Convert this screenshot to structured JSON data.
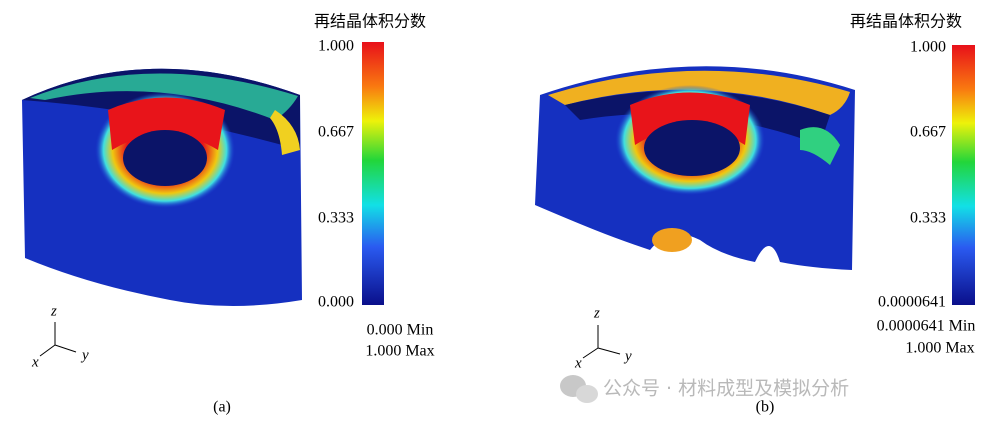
{
  "panels": [
    {
      "colorbar": {
        "title": "再结晶体积分数",
        "ticks": [
          "1.000",
          "0.667",
          "0.333",
          "0.000"
        ],
        "min_label": "0.000 Min",
        "max_label": "1.000 Max"
      },
      "axes": {
        "z": "z",
        "x": "x",
        "y": "y"
      },
      "caption": "(a)"
    },
    {
      "colorbar": {
        "title": "再结晶体积分数",
        "ticks": [
          "1.000",
          "0.667",
          "0.333",
          "0.0000641"
        ],
        "min_label": "0.0000641 Min",
        "max_label": "1.000 Max"
      },
      "axes": {
        "z": "z",
        "x": "x",
        "y": "y"
      },
      "caption": "(b)"
    }
  ],
  "watermark": "公众号 · 材料成型及模拟分析"
}
